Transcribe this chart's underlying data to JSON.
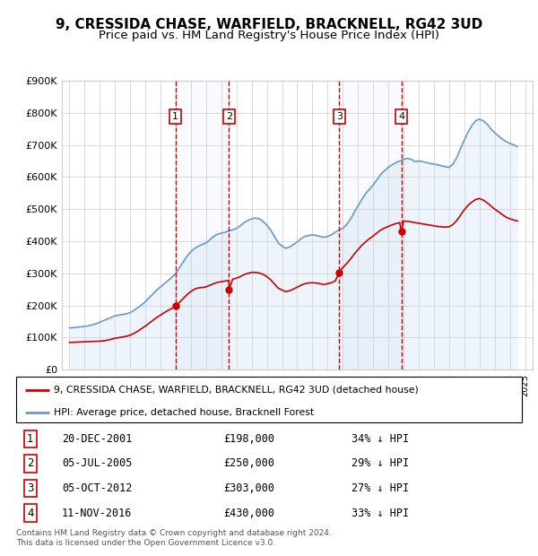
{
  "title": "9, CRESSIDA CHASE, WARFIELD, BRACKNELL, RG42 3UD",
  "subtitle": "Price paid vs. HM Land Registry's House Price Index (HPI)",
  "title_fontsize": 11,
  "subtitle_fontsize": 9.5,
  "background_color": "#ffffff",
  "plot_bg_color": "#ffffff",
  "grid_color": "#cccccc",
  "ylim": [
    0,
    900000
  ],
  "yticks": [
    0,
    100000,
    200000,
    300000,
    400000,
    500000,
    600000,
    700000,
    800000,
    900000
  ],
  "ytick_labels": [
    "£0",
    "£100K",
    "£200K",
    "£300K",
    "£400K",
    "£500K",
    "£600K",
    "£700K",
    "£800K",
    "£900K"
  ],
  "xlim_start": 1994.5,
  "xlim_end": 2025.5,
  "sale_dates": [
    2001.97,
    2005.51,
    2012.76,
    2016.86
  ],
  "sale_prices": [
    198000,
    250000,
    303000,
    430000
  ],
  "sale_labels": [
    "1",
    "2",
    "3",
    "4"
  ],
  "sale_line_color": "#cc0000",
  "sale_marker_color": "#cc0000",
  "sale_box_color": "#cc0000",
  "property_line_color": "#cc0000",
  "hpi_line_color": "#6699cc",
  "hpi_fill_color": "#cce0f5",
  "footer_text": "Contains HM Land Registry data © Crown copyright and database right 2024.\nThis data is licensed under the Open Government Licence v3.0.",
  "legend_property_label": "9, CRESSIDA CHASE, WARFIELD, BRACKNELL, RG42 3UD (detached house)",
  "legend_hpi_label": "HPI: Average price, detached house, Bracknell Forest",
  "table_data": [
    [
      "1",
      "20-DEC-2001",
      "£198,000",
      "34% ↓ HPI"
    ],
    [
      "2",
      "05-JUL-2005",
      "£250,000",
      "29% ↓ HPI"
    ],
    [
      "3",
      "05-OCT-2012",
      "£303,000",
      "27% ↓ HPI"
    ],
    [
      "4",
      "11-NOV-2016",
      "£430,000",
      "33% ↓ HPI"
    ]
  ],
  "hpi_years": [
    1995,
    1995.25,
    1995.5,
    1995.75,
    1996,
    1996.25,
    1996.5,
    1996.75,
    1997,
    1997.25,
    1997.5,
    1997.75,
    1998,
    1998.25,
    1998.5,
    1998.75,
    1999,
    1999.25,
    1999.5,
    1999.75,
    2000,
    2000.25,
    2000.5,
    2000.75,
    2001,
    2001.25,
    2001.5,
    2001.75,
    2002,
    2002.25,
    2002.5,
    2002.75,
    2003,
    2003.25,
    2003.5,
    2003.75,
    2004,
    2004.25,
    2004.5,
    2004.75,
    2005,
    2005.25,
    2005.5,
    2005.75,
    2006,
    2006.25,
    2006.5,
    2006.75,
    2007,
    2007.25,
    2007.5,
    2007.75,
    2008,
    2008.25,
    2008.5,
    2008.75,
    2009,
    2009.25,
    2009.5,
    2009.75,
    2010,
    2010.25,
    2010.5,
    2010.75,
    2011,
    2011.25,
    2011.5,
    2011.75,
    2012,
    2012.25,
    2012.5,
    2012.75,
    2013,
    2013.25,
    2013.5,
    2013.75,
    2014,
    2014.25,
    2014.5,
    2014.75,
    2015,
    2015.25,
    2015.5,
    2015.75,
    2016,
    2016.25,
    2016.5,
    2016.75,
    2017,
    2017.25,
    2017.5,
    2017.75,
    2018,
    2018.25,
    2018.5,
    2018.75,
    2019,
    2019.25,
    2019.5,
    2019.75,
    2020,
    2020.25,
    2020.5,
    2020.75,
    2021,
    2021.25,
    2021.5,
    2021.75,
    2022,
    2022.25,
    2022.5,
    2022.75,
    2023,
    2023.25,
    2023.5,
    2023.75,
    2024,
    2024.25,
    2024.5
  ],
  "hpi_values": [
    130000,
    131000,
    132000,
    133500,
    135000,
    137000,
    140000,
    143000,
    148000,
    153000,
    158000,
    163000,
    168000,
    170000,
    172000,
    174000,
    178000,
    185000,
    193000,
    202000,
    212000,
    224000,
    236000,
    248000,
    258000,
    268000,
    278000,
    288000,
    300000,
    318000,
    336000,
    354000,
    368000,
    378000,
    385000,
    390000,
    395000,
    405000,
    415000,
    422000,
    425000,
    428000,
    432000,
    436000,
    440000,
    448000,
    458000,
    465000,
    470000,
    472000,
    470000,
    462000,
    450000,
    435000,
    415000,
    395000,
    385000,
    378000,
    382000,
    390000,
    398000,
    408000,
    415000,
    418000,
    420000,
    418000,
    415000,
    412000,
    415000,
    420000,
    428000,
    435000,
    440000,
    452000,
    468000,
    490000,
    510000,
    530000,
    548000,
    562000,
    575000,
    592000,
    608000,
    620000,
    630000,
    638000,
    645000,
    650000,
    655000,
    658000,
    655000,
    648000,
    650000,
    648000,
    645000,
    642000,
    640000,
    638000,
    635000,
    632000,
    630000,
    640000,
    660000,
    688000,
    715000,
    740000,
    760000,
    775000,
    780000,
    775000,
    765000,
    750000,
    738000,
    728000,
    718000,
    710000,
    705000,
    700000,
    695000
  ],
  "prop_years": [
    1995,
    1995.25,
    1995.5,
    1995.75,
    1996,
    1996.25,
    1996.5,
    1996.75,
    1997,
    1997.25,
    1997.5,
    1997.75,
    1998,
    1998.25,
    1998.5,
    1998.75,
    1999,
    1999.25,
    1999.5,
    1999.75,
    2000,
    2000.25,
    2000.5,
    2000.75,
    2001,
    2001.25,
    2001.5,
    2001.75,
    2001.97,
    2002,
    2002.25,
    2002.5,
    2002.75,
    2003,
    2003.25,
    2003.5,
    2003.75,
    2004,
    2004.25,
    2004.5,
    2004.75,
    2005,
    2005.25,
    2005.5,
    2005.51,
    2005.75,
    2006,
    2006.25,
    2006.5,
    2006.75,
    2007,
    2007.25,
    2007.5,
    2007.75,
    2008,
    2008.25,
    2008.5,
    2008.75,
    2009,
    2009.25,
    2009.5,
    2009.75,
    2010,
    2010.25,
    2010.5,
    2010.75,
    2011,
    2011.25,
    2011.5,
    2011.75,
    2012,
    2012.25,
    2012.5,
    2012.76,
    2013,
    2013.25,
    2013.5,
    2013.75,
    2014,
    2014.25,
    2014.5,
    2014.75,
    2015,
    2015.25,
    2015.5,
    2015.75,
    2016,
    2016.25,
    2016.5,
    2016.75,
    2016.86,
    2017,
    2017.25,
    2017.5,
    2017.75,
    2018,
    2018.25,
    2018.5,
    2018.75,
    2019,
    2019.25,
    2019.5,
    2019.75,
    2020,
    2020.25,
    2020.5,
    2020.75,
    2021,
    2021.25,
    2021.5,
    2021.75,
    2022,
    2022.25,
    2022.5,
    2022.75,
    2023,
    2023.25,
    2023.5,
    2023.75,
    2024,
    2024.25,
    2024.5
  ],
  "prop_values": [
    85000,
    85500,
    86000,
    86500,
    87000,
    87500,
    88000,
    88500,
    89000,
    90000,
    92000,
    95000,
    98000,
    100000,
    102000,
    104000,
    108000,
    113000,
    120000,
    128000,
    136000,
    145000,
    154000,
    163000,
    170000,
    178000,
    185000,
    191000,
    198000,
    200000,
    210000,
    222000,
    234000,
    244000,
    251000,
    255000,
    256000,
    258000,
    263000,
    268000,
    272000,
    274000,
    276000,
    278000,
    250000,
    282000,
    285000,
    290000,
    296000,
    300000,
    303000,
    303000,
    301000,
    297000,
    290000,
    280000,
    267000,
    254000,
    248000,
    243000,
    246000,
    251000,
    257000,
    263000,
    268000,
    270000,
    271000,
    270000,
    268000,
    265000,
    268000,
    271000,
    276000,
    303000,
    318000,
    330000,
    344000,
    360000,
    374000,
    387000,
    398000,
    408000,
    416000,
    426000,
    435000,
    441000,
    446000,
    451000,
    455000,
    458000,
    430000,
    463000,
    462000,
    460000,
    458000,
    456000,
    454000,
    452000,
    450000,
    448000,
    446000,
    445000,
    444000,
    445000,
    452000,
    464000,
    481000,
    498000,
    512000,
    522000,
    530000,
    533000,
    528000,
    520000,
    510000,
    500000,
    492000,
    483000,
    475000,
    470000,
    466000,
    463000
  ]
}
